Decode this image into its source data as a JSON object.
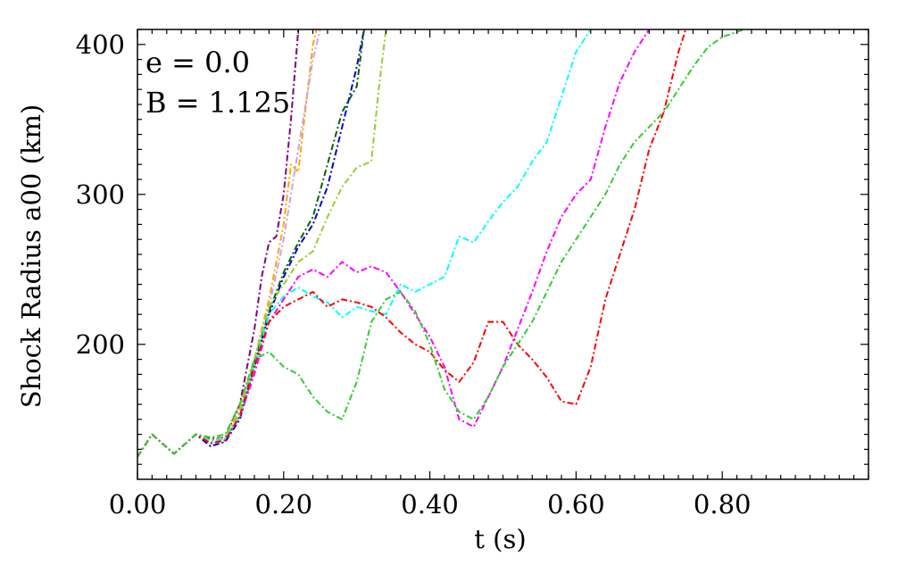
{
  "chart_data": {
    "type": "line",
    "xlabel": "t (s)",
    "ylabel": "Shock Radius a00 (km)",
    "xlim": [
      0.0,
      1.0
    ],
    "ylim": [
      110,
      410
    ],
    "xticks": [
      0.0,
      0.2,
      0.4,
      0.6,
      0.8
    ],
    "xtick_labels": [
      "0.00",
      "0.20",
      "0.40",
      "0.60",
      "0.80"
    ],
    "yticks": [
      200,
      300,
      400
    ],
    "ytick_labels": [
      "200",
      "300",
      "400"
    ],
    "grid": false,
    "line_style": "dash-dot",
    "annotations": [
      "e = 0.0",
      "B = 1.125"
    ],
    "series": [
      {
        "color": "#800080",
        "points": [
          [
            0.0,
            125
          ],
          [
            0.02,
            140
          ],
          [
            0.05,
            127
          ],
          [
            0.08,
            140
          ],
          [
            0.1,
            137
          ],
          [
            0.12,
            138
          ],
          [
            0.14,
            160
          ],
          [
            0.16,
            210
          ],
          [
            0.17,
            245
          ],
          [
            0.18,
            268
          ],
          [
            0.19,
            272
          ],
          [
            0.2,
            300
          ],
          [
            0.21,
            350
          ],
          [
            0.22,
            410
          ]
        ]
      },
      {
        "color": "#ffa500",
        "points": [
          [
            0.0,
            125
          ],
          [
            0.02,
            140
          ],
          [
            0.05,
            127
          ],
          [
            0.08,
            140
          ],
          [
            0.1,
            136
          ],
          [
            0.12,
            138
          ],
          [
            0.14,
            158
          ],
          [
            0.16,
            190
          ],
          [
            0.18,
            230
          ],
          [
            0.2,
            280
          ],
          [
            0.21,
            320
          ],
          [
            0.22,
            315
          ],
          [
            0.24,
            400
          ],
          [
            0.245,
            410
          ]
        ]
      },
      {
        "color": "#c8a2e8",
        "points": [
          [
            0.0,
            125
          ],
          [
            0.02,
            140
          ],
          [
            0.05,
            127
          ],
          [
            0.08,
            140
          ],
          [
            0.1,
            136
          ],
          [
            0.12,
            137
          ],
          [
            0.14,
            155
          ],
          [
            0.16,
            190
          ],
          [
            0.18,
            225
          ],
          [
            0.2,
            270
          ],
          [
            0.22,
            330
          ],
          [
            0.24,
            390
          ],
          [
            0.25,
            410
          ]
        ]
      },
      {
        "color": "#0000cd",
        "points": [
          [
            0.0,
            125
          ],
          [
            0.02,
            140
          ],
          [
            0.05,
            127
          ],
          [
            0.08,
            140
          ],
          [
            0.1,
            132
          ],
          [
            0.12,
            135
          ],
          [
            0.14,
            150
          ],
          [
            0.16,
            185
          ],
          [
            0.18,
            220
          ],
          [
            0.2,
            245
          ],
          [
            0.22,
            265
          ],
          [
            0.24,
            280
          ],
          [
            0.26,
            305
          ],
          [
            0.28,
            345
          ],
          [
            0.3,
            385
          ],
          [
            0.31,
            410
          ]
        ]
      },
      {
        "color": "#006400",
        "points": [
          [
            0.0,
            125
          ],
          [
            0.02,
            140
          ],
          [
            0.05,
            127
          ],
          [
            0.08,
            140
          ],
          [
            0.1,
            134
          ],
          [
            0.12,
            136
          ],
          [
            0.14,
            152
          ],
          [
            0.16,
            188
          ],
          [
            0.18,
            222
          ],
          [
            0.2,
            248
          ],
          [
            0.22,
            268
          ],
          [
            0.24,
            285
          ],
          [
            0.26,
            320
          ],
          [
            0.28,
            355
          ],
          [
            0.3,
            372
          ],
          [
            0.31,
            410
          ]
        ]
      },
      {
        "color": "#9acd32",
        "points": [
          [
            0.0,
            125
          ],
          [
            0.02,
            140
          ],
          [
            0.05,
            127
          ],
          [
            0.08,
            140
          ],
          [
            0.1,
            136
          ],
          [
            0.12,
            138
          ],
          [
            0.14,
            155
          ],
          [
            0.16,
            190
          ],
          [
            0.18,
            225
          ],
          [
            0.2,
            240
          ],
          [
            0.22,
            255
          ],
          [
            0.24,
            262
          ],
          [
            0.26,
            285
          ],
          [
            0.28,
            305
          ],
          [
            0.3,
            318
          ],
          [
            0.32,
            322
          ],
          [
            0.33,
            370
          ],
          [
            0.34,
            410
          ]
        ]
      },
      {
        "color": "#00ffff",
        "points": [
          [
            0.0,
            125
          ],
          [
            0.02,
            140
          ],
          [
            0.05,
            127
          ],
          [
            0.08,
            140
          ],
          [
            0.1,
            135
          ],
          [
            0.12,
            137
          ],
          [
            0.14,
            152
          ],
          [
            0.16,
            185
          ],
          [
            0.18,
            220
          ],
          [
            0.2,
            232
          ],
          [
            0.22,
            238
          ],
          [
            0.24,
            232
          ],
          [
            0.26,
            228
          ],
          [
            0.28,
            218
          ],
          [
            0.3,
            225
          ],
          [
            0.32,
            222
          ],
          [
            0.34,
            220
          ],
          [
            0.36,
            240
          ],
          [
            0.38,
            235
          ],
          [
            0.4,
            240
          ],
          [
            0.42,
            245
          ],
          [
            0.44,
            272
          ],
          [
            0.46,
            268
          ],
          [
            0.48,
            282
          ],
          [
            0.5,
            295
          ],
          [
            0.52,
            305
          ],
          [
            0.54,
            322
          ],
          [
            0.56,
            335
          ],
          [
            0.58,
            365
          ],
          [
            0.6,
            395
          ],
          [
            0.62,
            410
          ]
        ]
      },
      {
        "color": "#ff00ff",
        "points": [
          [
            0.0,
            125
          ],
          [
            0.02,
            140
          ],
          [
            0.05,
            127
          ],
          [
            0.08,
            140
          ],
          [
            0.1,
            134
          ],
          [
            0.12,
            136
          ],
          [
            0.14,
            152
          ],
          [
            0.16,
            180
          ],
          [
            0.18,
            215
          ],
          [
            0.2,
            230
          ],
          [
            0.22,
            245
          ],
          [
            0.24,
            250
          ],
          [
            0.26,
            245
          ],
          [
            0.28,
            255
          ],
          [
            0.3,
            248
          ],
          [
            0.32,
            252
          ],
          [
            0.34,
            248
          ],
          [
            0.36,
            235
          ],
          [
            0.38,
            220
          ],
          [
            0.4,
            205
          ],
          [
            0.42,
            185
          ],
          [
            0.44,
            150
          ],
          [
            0.46,
            145
          ],
          [
            0.48,
            165
          ],
          [
            0.5,
            185
          ],
          [
            0.52,
            210
          ],
          [
            0.54,
            235
          ],
          [
            0.56,
            262
          ],
          [
            0.58,
            285
          ],
          [
            0.6,
            300
          ],
          [
            0.62,
            310
          ],
          [
            0.64,
            345
          ],
          [
            0.66,
            375
          ],
          [
            0.68,
            395
          ],
          [
            0.7,
            410
          ]
        ]
      },
      {
        "color": "#ff0000",
        "points": [
          [
            0.0,
            125
          ],
          [
            0.02,
            140
          ],
          [
            0.05,
            127
          ],
          [
            0.08,
            140
          ],
          [
            0.1,
            134
          ],
          [
            0.12,
            136
          ],
          [
            0.14,
            152
          ],
          [
            0.16,
            185
          ],
          [
            0.18,
            215
          ],
          [
            0.2,
            225
          ],
          [
            0.22,
            230
          ],
          [
            0.24,
            235
          ],
          [
            0.26,
            225
          ],
          [
            0.28,
            230
          ],
          [
            0.3,
            228
          ],
          [
            0.32,
            225
          ],
          [
            0.34,
            218
          ],
          [
            0.36,
            208
          ],
          [
            0.38,
            200
          ],
          [
            0.4,
            195
          ],
          [
            0.42,
            183
          ],
          [
            0.44,
            175
          ],
          [
            0.46,
            188
          ],
          [
            0.48,
            215
          ],
          [
            0.5,
            215
          ],
          [
            0.52,
            200
          ],
          [
            0.54,
            190
          ],
          [
            0.56,
            178
          ],
          [
            0.58,
            162
          ],
          [
            0.6,
            160
          ],
          [
            0.62,
            185
          ],
          [
            0.64,
            230
          ],
          [
            0.66,
            260
          ],
          [
            0.68,
            290
          ],
          [
            0.7,
            330
          ],
          [
            0.72,
            355
          ],
          [
            0.74,
            395
          ],
          [
            0.75,
            410
          ]
        ]
      },
      {
        "color": "#32cd32",
        "points": [
          [
            0.0,
            125
          ],
          [
            0.02,
            140
          ],
          [
            0.05,
            127
          ],
          [
            0.08,
            140
          ],
          [
            0.1,
            138
          ],
          [
            0.12,
            140
          ],
          [
            0.14,
            160
          ],
          [
            0.16,
            190
          ],
          [
            0.18,
            195
          ],
          [
            0.2,
            185
          ],
          [
            0.22,
            180
          ],
          [
            0.24,
            165
          ],
          [
            0.26,
            155
          ],
          [
            0.28,
            150
          ],
          [
            0.3,
            175
          ],
          [
            0.32,
            215
          ],
          [
            0.34,
            230
          ],
          [
            0.36,
            235
          ],
          [
            0.38,
            222
          ],
          [
            0.4,
            200
          ],
          [
            0.42,
            170
          ],
          [
            0.44,
            155
          ],
          [
            0.46,
            150
          ],
          [
            0.48,
            165
          ],
          [
            0.5,
            185
          ],
          [
            0.52,
            200
          ],
          [
            0.54,
            215
          ],
          [
            0.56,
            235
          ],
          [
            0.58,
            255
          ],
          [
            0.6,
            270
          ],
          [
            0.62,
            285
          ],
          [
            0.64,
            300
          ],
          [
            0.66,
            320
          ],
          [
            0.68,
            335
          ],
          [
            0.7,
            345
          ],
          [
            0.72,
            355
          ],
          [
            0.74,
            370
          ],
          [
            0.76,
            385
          ],
          [
            0.78,
            398
          ],
          [
            0.8,
            405
          ],
          [
            0.83,
            410
          ]
        ]
      }
    ]
  }
}
